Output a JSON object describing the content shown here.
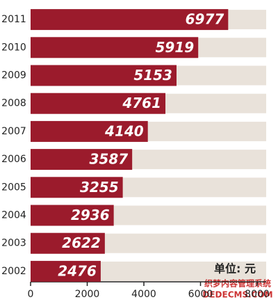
{
  "chart_data": {
    "type": "bar",
    "orientation": "horizontal",
    "categories": [
      "2011",
      "2010",
      "2009",
      "2008",
      "2007",
      "2006",
      "2005",
      "2004",
      "2003",
      "2002"
    ],
    "values": [
      6977,
      5919,
      5153,
      4761,
      4140,
      3587,
      3255,
      2936,
      2622,
      2476
    ],
    "color": "#9b1b2c",
    "xlim": [
      0,
      8000
    ],
    "xticks": [
      0,
      2000,
      4000,
      6000,
      8000
    ],
    "grid": false,
    "unit_label": "单位: 元",
    "watermark": [
      "织梦内容管理系统",
      "DEDECMS.COM"
    ]
  }
}
